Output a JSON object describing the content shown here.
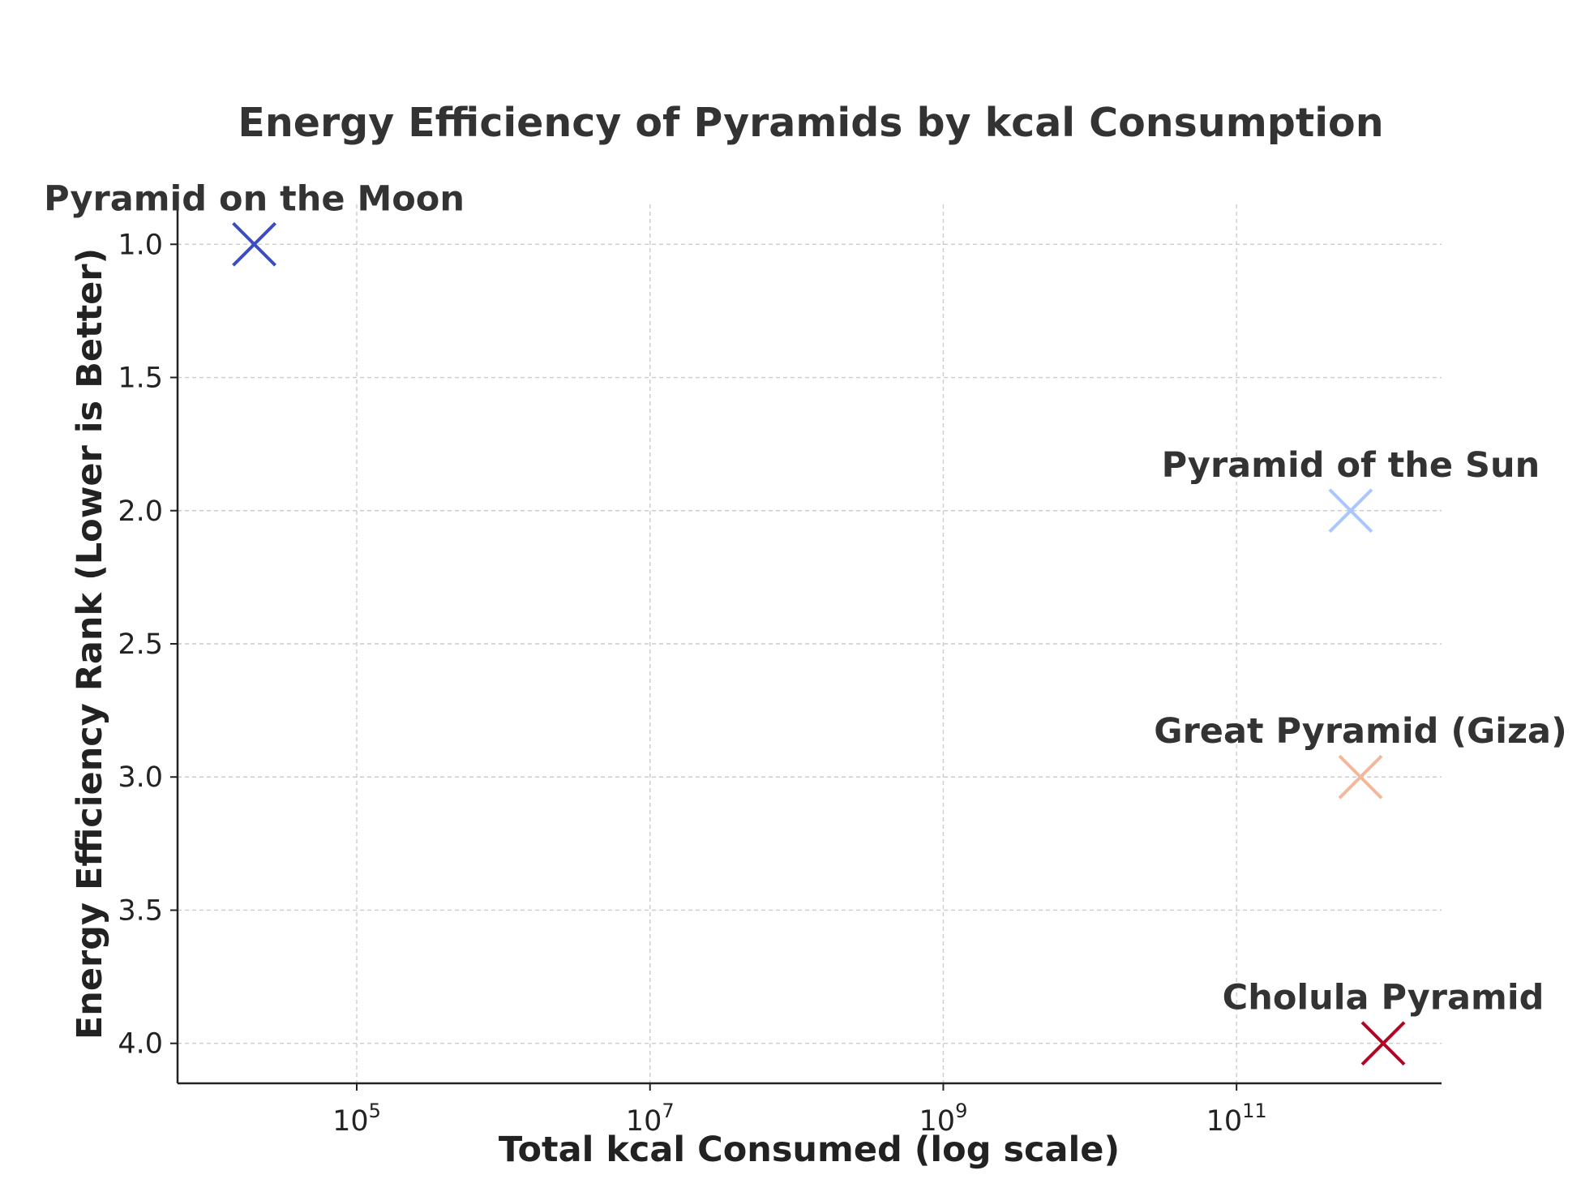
{
  "chart_data": {
    "type": "scatter",
    "title": "Energy Efficiency of Pyramids by kcal Consumption",
    "xlabel": "Total kcal Consumed (log scale)",
    "ylabel": "Energy Efficiency Rank (Lower is Better)",
    "xscale": "log",
    "xlim": [
      6000.0,
      2500000000000.0
    ],
    "ylim": [
      4.15,
      0.85
    ],
    "y_inverted": true,
    "grid": true,
    "x_ticks": [
      {
        "value": 100000.0,
        "base": "10",
        "exp": "5"
      },
      {
        "value": 10000000.0,
        "base": "10",
        "exp": "7"
      },
      {
        "value": 1000000000.0,
        "base": "10",
        "exp": "9"
      },
      {
        "value": 100000000000.0,
        "base": "10",
        "exp": "11"
      }
    ],
    "y_ticks": [
      {
        "value": 1.0,
        "label": "1.0"
      },
      {
        "value": 1.5,
        "label": "1.5"
      },
      {
        "value": 2.0,
        "label": "2.0"
      },
      {
        "value": 2.5,
        "label": "2.5"
      },
      {
        "value": 3.0,
        "label": "3.0"
      },
      {
        "value": 3.5,
        "label": "3.5"
      },
      {
        "value": 4.0,
        "label": "4.0"
      }
    ],
    "marker": "x",
    "points": [
      {
        "name": "Pyramid on the Moon",
        "x": 20000.0,
        "y": 1,
        "color": "#3b4cc0"
      },
      {
        "name": "Pyramid of the Sun",
        "x": 600000000000.0,
        "y": 2,
        "color": "#aac7fd"
      },
      {
        "name": "Great Pyramid (Giza)",
        "x": 700000000000.0,
        "y": 3,
        "color": "#f4b79b"
      },
      {
        "name": "Cholula Pyramid",
        "x": 1000000000000.0,
        "y": 4,
        "color": "#b40426"
      }
    ]
  }
}
